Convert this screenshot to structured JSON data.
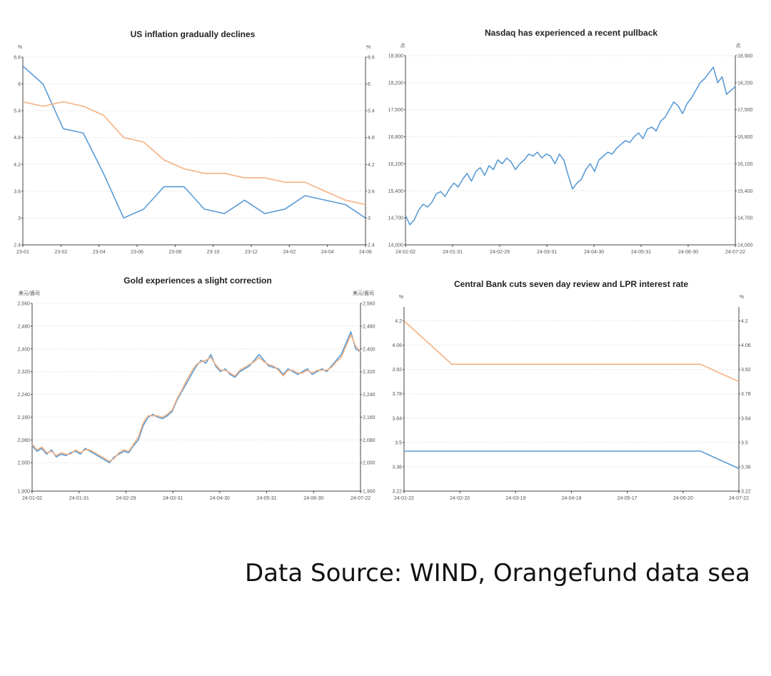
{
  "colors": {
    "blue": "#5b9bd5",
    "orange": "#f4b183",
    "axis": "#444444"
  },
  "source_text": "Data Source: WIND, Orangefund data sea",
  "chart_data": [
    {
      "id": "inflation",
      "type": "line",
      "title": "US inflation gradually declines",
      "y_unit_left": "%",
      "y_unit_right": "%",
      "ylim": [
        2.4,
        6.6
      ],
      "y_ticks": [
        "2.4",
        "3",
        "3.6",
        "4.2",
        "4.8",
        "5.4",
        "6",
        "6.6"
      ],
      "y_ticks_right": [
        "2.4",
        "3",
        "3.6",
        "4.2",
        "4.8",
        "5.4",
        "6",
        "6.6"
      ],
      "x_ticks": [
        "23-01",
        "23-02",
        "23-04",
        "23-06",
        "23-08",
        "23-10",
        "23-12",
        "24-02",
        "24-04",
        "24-06"
      ],
      "x": [
        "23-01",
        "23-02",
        "23-03",
        "23-04",
        "23-05",
        "23-06",
        "23-07",
        "23-08",
        "23-09",
        "23-10",
        "23-11",
        "23-12",
        "24-01",
        "24-02",
        "24-03",
        "24-04",
        "24-05",
        "24-06"
      ],
      "series": [
        {
          "color": "blue",
          "values": [
            6.4,
            6.0,
            5.0,
            4.9,
            4.0,
            3.0,
            3.2,
            3.7,
            3.7,
            3.2,
            3.1,
            3.4,
            3.1,
            3.2,
            3.5,
            3.4,
            3.3,
            3.0
          ]
        },
        {
          "color": "orange",
          "values": [
            5.6,
            5.5,
            5.6,
            5.5,
            5.3,
            4.8,
            4.7,
            4.3,
            4.1,
            4.0,
            4.0,
            3.9,
            3.9,
            3.8,
            3.8,
            3.6,
            3.4,
            3.3
          ]
        }
      ]
    },
    {
      "id": "nasdaq",
      "type": "line",
      "title": "Nasdaq has experienced a recent pullback",
      "y_unit_left": "点",
      "y_unit_right": "点",
      "ylim": [
        14000,
        18900
      ],
      "y_ticks": [
        "14,000",
        "14,700",
        "15,400",
        "16,100",
        "16,800",
        "17,500",
        "18,200",
        "18,900"
      ],
      "y_ticks_right": [
        "14,000",
        "14,700",
        "15,400",
        "16,100",
        "16,800",
        "17,500",
        "18,200",
        "18,900"
      ],
      "x_ticks": [
        "24-01-02",
        "24-01-31",
        "24-02-29",
        "24-03-31",
        "24-04-30",
        "24-05-31",
        "24-06-30",
        "24-07-22"
      ],
      "series": [
        {
          "color": "blue",
          "values": [
            14760,
            14520,
            14650,
            14900,
            15050,
            14980,
            15100,
            15320,
            15380,
            15250,
            15450,
            15600,
            15500,
            15700,
            15850,
            15650,
            15900,
            16000,
            15800,
            16050,
            15950,
            16200,
            16100,
            16250,
            16150,
            15950,
            16100,
            16200,
            16350,
            16300,
            16400,
            16250,
            16350,
            16300,
            16100,
            16350,
            16200,
            15800,
            15450,
            15600,
            15700,
            15950,
            16100,
            15900,
            16200,
            16300,
            16400,
            16350,
            16500,
            16600,
            16700,
            16650,
            16800,
            16900,
            16750,
            17000,
            17050,
            16950,
            17200,
            17300,
            17500,
            17700,
            17600,
            17400,
            17650,
            17800,
            18000,
            18200,
            18300,
            18450,
            18600,
            18200,
            18350,
            17900,
            18000,
            18100
          ]
        }
      ]
    },
    {
      "id": "gold",
      "type": "line",
      "title": "Gold experiences a slight correction",
      "y_unit_left": "美元/盎司",
      "y_unit_right": "美元/盎司",
      "ylim": [
        1900,
        2560
      ],
      "y_ticks": [
        "1,900",
        "2,000",
        "2,080",
        "2,160",
        "2,240",
        "2,320",
        "2,400",
        "2,480",
        "2,560"
      ],
      "y_ticks_right": [
        "1,900",
        "2,000",
        "2,080",
        "2,160",
        "2,240",
        "2,320",
        "2,400",
        "2,480",
        "2,560"
      ],
      "x_ticks": [
        "24-01-02",
        "24-01-31",
        "24-02-29",
        "24-03-31",
        "24-04-30",
        "24-05-31",
        "24-06-30",
        "24-07-22"
      ],
      "series": [
        {
          "color": "blue",
          "values": [
            2060,
            2040,
            2050,
            2030,
            2045,
            2020,
            2030,
            2025,
            2035,
            2040,
            2030,
            2050,
            2040,
            2030,
            2020,
            2010,
            2000,
            2020,
            2030,
            2040,
            2035,
            2060,
            2080,
            2130,
            2160,
            2170,
            2160,
            2155,
            2165,
            2180,
            2220,
            2250,
            2280,
            2310,
            2340,
            2360,
            2350,
            2380,
            2340,
            2320,
            2330,
            2310,
            2300,
            2320,
            2330,
            2340,
            2360,
            2380,
            2360,
            2340,
            2335,
            2330,
            2310,
            2330,
            2320,
            2310,
            2320,
            2330,
            2310,
            2320,
            2330,
            2320,
            2340,
            2360,
            2380,
            2420,
            2460,
            2400,
            2390
          ]
        },
        {
          "color": "orange",
          "values": [
            2065,
            2045,
            2055,
            2035,
            2040,
            2025,
            2035,
            2030,
            2030,
            2045,
            2035,
            2045,
            2045,
            2035,
            2025,
            2015,
            2005,
            2015,
            2035,
            2045,
            2040,
            2065,
            2090,
            2140,
            2165,
            2165,
            2165,
            2160,
            2170,
            2185,
            2225,
            2255,
            2290,
            2320,
            2345,
            2355,
            2360,
            2370,
            2345,
            2325,
            2325,
            2315,
            2305,
            2325,
            2335,
            2345,
            2355,
            2370,
            2355,
            2345,
            2340,
            2325,
            2305,
            2325,
            2325,
            2315,
            2315,
            2325,
            2315,
            2325,
            2325,
            2325,
            2335,
            2355,
            2370,
            2410,
            2450,
            2410,
            2390
          ]
        }
      ]
    },
    {
      "id": "lpr",
      "type": "line",
      "title": "Central Bank cuts seven day review and LPR interest rate",
      "y_unit_left": "%",
      "y_unit_right": "%",
      "ylim": [
        3.22,
        4.28
      ],
      "y_ticks": [
        "3.22",
        "3.36",
        "3.5",
        "3.64",
        "3.78",
        "3.92",
        "4.06",
        "4.2"
      ],
      "y_ticks_right": [
        "3.22",
        "3.36",
        "3.5",
        "3.64",
        "3.78",
        "3.92",
        "4.06",
        "4.2"
      ],
      "x_ticks": [
        "24-01-22",
        "24-02-20",
        "24-03-19",
        "24-04-18",
        "24-05-17",
        "24-06-20",
        "24-07-22"
      ],
      "x": [
        0,
        1,
        4.6,
        6.2,
        7
      ],
      "series": [
        {
          "color": "blue",
          "values": [
            3.45,
            3.45,
            3.45,
            3.45,
            3.35
          ]
        },
        {
          "color": "orange",
          "values": [
            4.2,
            3.95,
            3.95,
            3.95,
            3.85
          ]
        }
      ]
    }
  ]
}
